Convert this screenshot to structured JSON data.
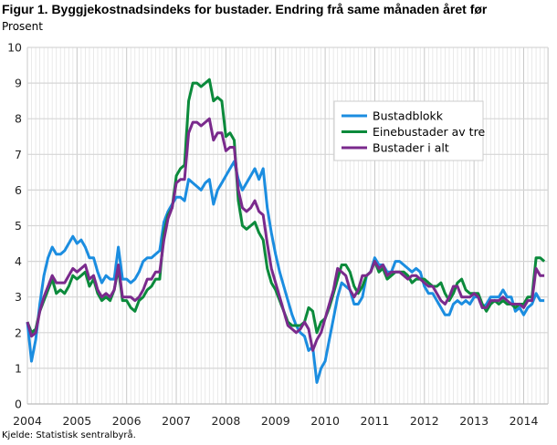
{
  "chart_data": {
    "type": "line",
    "title": "Figur 1. Byggjekostnadsindeks for bustader. Endring frå same månaden året før",
    "ylabel": "Prosent",
    "xlabel": "",
    "source": "Kjelde: Statistisk sentralbyrå.",
    "ylim": [
      0,
      10
    ],
    "yticks": [
      "0",
      "1",
      "2",
      "3",
      "4",
      "5",
      "6",
      "7",
      "8",
      "9",
      "10"
    ],
    "xticks": [
      "2004",
      "2005",
      "2006",
      "2007",
      "2008",
      "2009",
      "2010",
      "2011",
      "2012",
      "2013",
      "2014"
    ],
    "x_start": "2004-01",
    "x_frequency": "monthly",
    "grid": true,
    "legend_position": "center-right",
    "series": [
      {
        "name": "Bustadblokk",
        "color": "#1b8de0",
        "values": [
          2.3,
          1.2,
          1.8,
          2.8,
          3.6,
          4.1,
          4.4,
          4.2,
          4.2,
          4.3,
          4.5,
          4.7,
          4.5,
          4.6,
          4.4,
          4.1,
          4.1,
          3.7,
          3.4,
          3.6,
          3.5,
          3.5,
          4.4,
          3.5,
          3.5,
          3.4,
          3.5,
          3.7,
          4.0,
          4.1,
          4.1,
          4.2,
          4.3,
          5.1,
          5.4,
          5.6,
          5.8,
          5.8,
          5.7,
          6.3,
          6.2,
          6.1,
          6.0,
          6.2,
          6.3,
          5.6,
          6.0,
          6.2,
          6.4,
          6.6,
          6.8,
          6.3,
          6.0,
          6.2,
          6.4,
          6.6,
          6.3,
          6.6,
          5.5,
          4.8,
          4.2,
          3.7,
          3.3,
          2.9,
          2.5,
          2.2,
          2.0,
          1.9,
          1.5,
          1.6,
          0.6,
          1.0,
          1.2,
          1.8,
          2.4,
          3.0,
          3.4,
          3.3,
          3.2,
          2.8,
          2.8,
          3.0,
          3.6,
          3.7,
          4.1,
          3.9,
          3.9,
          3.7,
          3.7,
          4.0,
          4.0,
          3.9,
          3.8,
          3.7,
          3.8,
          3.7,
          3.3,
          3.1,
          3.1,
          2.9,
          2.7,
          2.5,
          2.5,
          2.8,
          2.9,
          2.8,
          2.9,
          2.8,
          3.0,
          3.0,
          2.7,
          2.8,
          3.0,
          3.0,
          3.0,
          3.2,
          3.0,
          3.0,
          2.6,
          2.7,
          2.5,
          2.7,
          2.8,
          3.1,
          2.9,
          2.9
        ]
      },
      {
        "name": "Einebustader av tre",
        "color": "#0b8a3b",
        "values": [
          2.3,
          2.0,
          2.1,
          2.6,
          2.9,
          3.2,
          3.5,
          3.1,
          3.2,
          3.1,
          3.3,
          3.6,
          3.5,
          3.6,
          3.7,
          3.3,
          3.5,
          3.1,
          2.9,
          3.0,
          2.9,
          3.2,
          3.8,
          2.9,
          2.9,
          2.7,
          2.6,
          2.9,
          3.0,
          3.2,
          3.3,
          3.5,
          3.5,
          4.8,
          5.3,
          5.5,
          6.4,
          6.6,
          6.7,
          8.5,
          9.0,
          9.0,
          8.9,
          9.0,
          9.1,
          8.5,
          8.6,
          8.5,
          7.5,
          7.6,
          7.4,
          5.7,
          5.0,
          4.9,
          5.0,
          5.1,
          4.8,
          4.6,
          3.8,
          3.4,
          3.2,
          2.9,
          2.6,
          2.3,
          2.2,
          2.2,
          2.2,
          2.3,
          2.7,
          2.6,
          2.0,
          2.3,
          2.4,
          2.7,
          3.1,
          3.5,
          3.9,
          3.9,
          3.7,
          3.3,
          3.1,
          3.3,
          3.6,
          3.7,
          4.0,
          3.7,
          3.8,
          3.5,
          3.6,
          3.7,
          3.7,
          3.7,
          3.6,
          3.4,
          3.5,
          3.5,
          3.5,
          3.4,
          3.3,
          3.3,
          3.4,
          3.1,
          2.9,
          3.1,
          3.4,
          3.5,
          3.2,
          3.1,
          3.1,
          3.1,
          2.8,
          2.6,
          2.8,
          2.9,
          2.8,
          2.9,
          2.8,
          2.8,
          2.7,
          2.8,
          2.8,
          3.0,
          3.0,
          4.1,
          4.1,
          4.0
        ]
      },
      {
        "name": "Bustader i alt",
        "color": "#7a2a8c",
        "values": [
          2.3,
          1.9,
          2.0,
          2.6,
          3.0,
          3.3,
          3.6,
          3.4,
          3.4,
          3.4,
          3.6,
          3.8,
          3.7,
          3.8,
          3.9,
          3.5,
          3.6,
          3.2,
          3.0,
          3.1,
          3.0,
          3.2,
          3.9,
          3.0,
          3.0,
          3.0,
          2.9,
          3.0,
          3.2,
          3.5,
          3.5,
          3.7,
          3.7,
          4.6,
          5.2,
          5.5,
          6.2,
          6.3,
          6.3,
          7.6,
          7.9,
          7.9,
          7.8,
          7.9,
          8.0,
          7.4,
          7.6,
          7.6,
          7.1,
          7.2,
          7.2,
          6.0,
          5.5,
          5.4,
          5.5,
          5.7,
          5.4,
          5.3,
          4.5,
          3.8,
          3.4,
          3.0,
          2.6,
          2.2,
          2.1,
          2.0,
          2.1,
          2.3,
          2.1,
          1.5,
          1.8,
          2.0,
          2.4,
          2.8,
          3.2,
          3.8,
          3.7,
          3.6,
          3.2,
          3.0,
          3.2,
          3.6,
          3.6,
          3.7,
          4.0,
          3.8,
          3.9,
          3.6,
          3.7,
          3.7,
          3.7,
          3.6,
          3.5,
          3.6,
          3.6,
          3.5,
          3.4,
          3.3,
          3.3,
          3.1,
          2.9,
          2.8,
          3.0,
          3.3,
          3.3,
          3.0,
          3.0,
          3.0,
          3.1,
          3.0,
          2.7,
          2.7,
          2.9,
          2.9,
          2.9,
          3.0,
          2.9,
          2.8,
          2.8,
          2.8,
          2.7,
          2.9,
          2.9,
          3.8,
          3.6,
          3.6
        ]
      }
    ]
  }
}
